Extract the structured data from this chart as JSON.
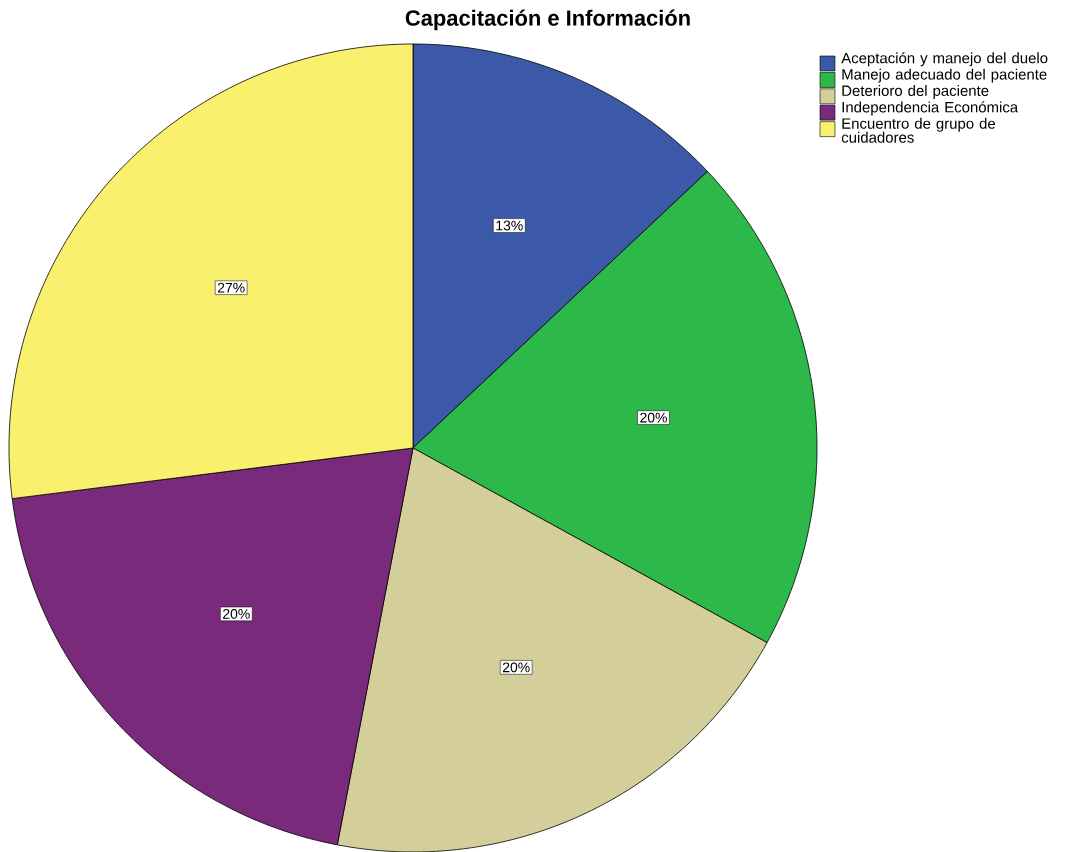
{
  "chart_data": {
    "type": "pie",
    "title": "Capacitación e Información",
    "categories": [
      "Aceptación y manejo del duelo",
      "Manejo adecuado del paciente",
      "Deterioro del paciente",
      "Independencia Económica",
      "Encuentro de grupo de cuidadores"
    ],
    "values": [
      13,
      20,
      20,
      20,
      27
    ],
    "colors": [
      "#3c58a8",
      "#2db84a",
      "#d3ce9a",
      "#7a2a7a",
      "#f9f06e"
    ],
    "value_labels": [
      "13%",
      "20%",
      "20%",
      "20%",
      "27%"
    ],
    "legend": "top right"
  }
}
